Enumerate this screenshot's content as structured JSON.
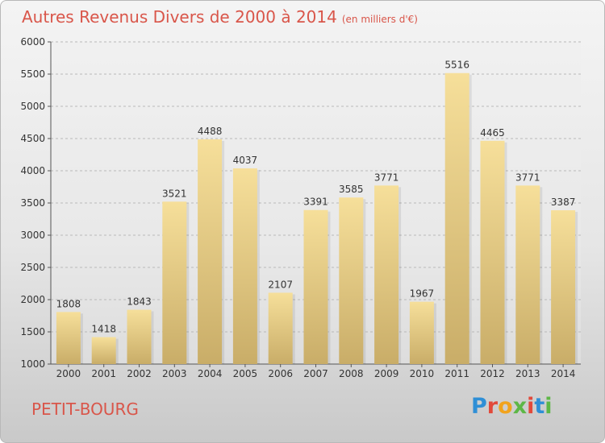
{
  "header": {
    "title": "Autres Revenus Divers de 2000 à 2014",
    "unit": "(en milliers d'€)"
  },
  "footer": {
    "commune": "PETIT-BOURG",
    "brand": "Proxiti",
    "brand_colors": [
      "#2f8fd6",
      "#e2493a",
      "#f1a31d",
      "#5db746",
      "#e2493a",
      "#2f8fd6",
      "#5db746"
    ]
  },
  "colors": {
    "title": "#d9564a",
    "bar_top": "#f6df9a",
    "bar_bottom": "#c9ad68",
    "grid": "#b9b9b9",
    "axis": "#555555"
  },
  "chart_data": {
    "type": "bar",
    "title": "Autres Revenus Divers de 2000 à 2014",
    "ylabel": "",
    "xlabel": "",
    "categories": [
      "2000",
      "2001",
      "2002",
      "2003",
      "2004",
      "2005",
      "2006",
      "2007",
      "2008",
      "2009",
      "2010",
      "2011",
      "2012",
      "2013",
      "2014"
    ],
    "values": [
      1808,
      1418,
      1843,
      3521,
      4488,
      4037,
      2107,
      3391,
      3585,
      3771,
      1967,
      5516,
      4465,
      3771,
      3387
    ],
    "ylim": [
      1000,
      6000
    ],
    "yticks": [
      1000,
      1500,
      2000,
      2500,
      3000,
      3500,
      4000,
      4500,
      5000,
      5500,
      6000
    ],
    "grid": "horizontal dashed",
    "data_labels": true
  }
}
